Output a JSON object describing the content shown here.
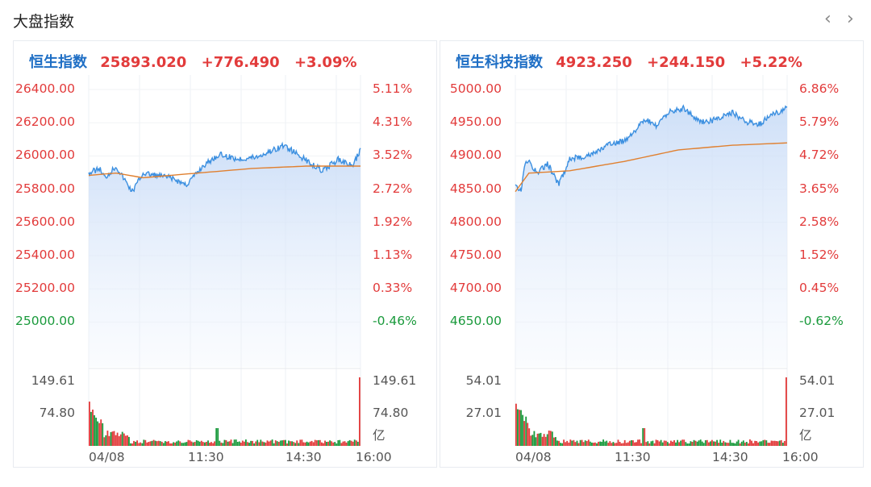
{
  "header": {
    "title": "大盘指数",
    "prev_icon": "chevron-left-icon",
    "next_icon": "chevron-right-icon"
  },
  "colors": {
    "red": "#e23b3b",
    "green": "#1a9a3c",
    "blue": "#1f6fc5",
    "price_line": "#3b8fe0",
    "avg_line": "#e08030"
  },
  "cards": [
    {
      "name": "恒生指数",
      "price": "25893.020",
      "change": "+776.490",
      "pct": "+3.09%",
      "price_labels": [
        "26400.00",
        "26200.00",
        "26000.00",
        "25800.00",
        "25600.00",
        "25400.00",
        "25200.00",
        "25000.00"
      ],
      "pct_labels": [
        "5.11%",
        "4.31%",
        "3.52%",
        "2.72%",
        "1.92%",
        "1.13%",
        "0.33%",
        "-0.46%"
      ],
      "vol_labels": [
        "149.61",
        "74.80"
      ],
      "vol_right_labels": [
        "149.61",
        "74.80",
        "亿"
      ],
      "time_labels": [
        "04/08",
        "11:30",
        "14:30",
        "16:00"
      ]
    },
    {
      "name": "恒生科技指数",
      "price": "4923.250",
      "change": "+244.150",
      "pct": "+5.22%",
      "price_labels": [
        "5000.00",
        "4950.00",
        "4900.00",
        "4850.00",
        "4800.00",
        "4750.00",
        "4700.00",
        "4650.00"
      ],
      "pct_labels": [
        "6.86%",
        "5.79%",
        "4.72%",
        "3.65%",
        "2.58%",
        "1.52%",
        "0.45%",
        "-0.62%"
      ],
      "vol_labels": [
        "54.01",
        "27.01"
      ],
      "vol_right_labels": [
        "54.01",
        "27.01",
        "亿"
      ],
      "time_labels": [
        "04/08",
        "11:30",
        "14:30",
        "16:00"
      ]
    }
  ]
}
